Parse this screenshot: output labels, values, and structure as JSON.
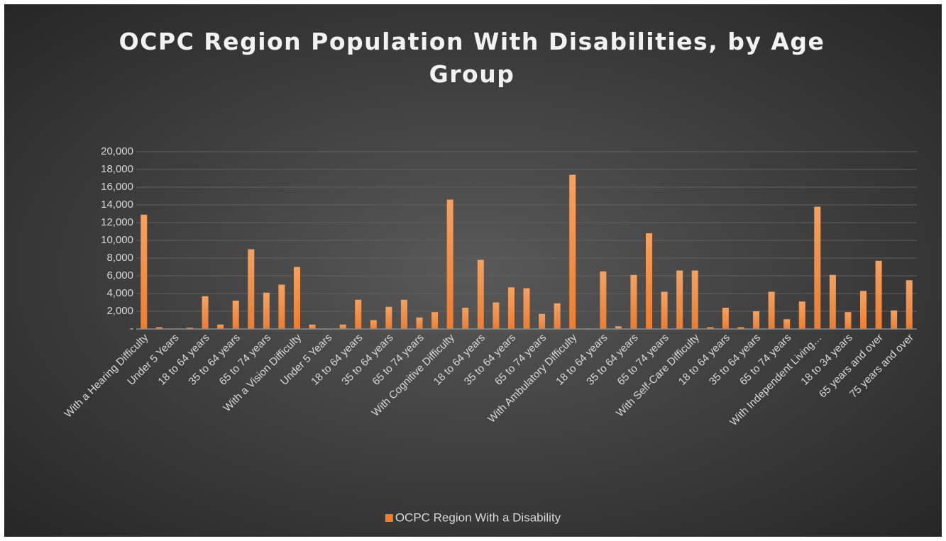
{
  "chart_data": {
    "type": "bar",
    "title": "OCPC Region Population With Disabilities, by Age Group",
    "categories": [
      "With a Hearing Difficulty",
      null,
      "Under 5 Years",
      null,
      "18 to 64 years",
      null,
      "35 to 64 years",
      null,
      "65 to 74 years",
      null,
      "With a Vision Difficulty",
      null,
      "Under 5 Years",
      null,
      "18 to 64 years",
      null,
      "35 to 64 years",
      null,
      "65 to 74 years",
      null,
      "With Cognitive Difficulty",
      null,
      "18 to 64 years",
      null,
      "35 to 64 years",
      null,
      "65 to 74 years",
      null,
      "With Ambulatory Difficulty",
      null,
      "18 to 64 years",
      null,
      "35 to 64 years",
      null,
      "65 to 74 years",
      null,
      "With Self-Care Difficulty",
      null,
      "18 to 64 years",
      null,
      "35 to 64 years",
      null,
      "65 to 74 years",
      null,
      "With Independent Living…",
      null,
      "18 to 34 years",
      null,
      "65 years and over",
      null,
      "75 years and over"
    ],
    "series": [
      {
        "name": "OCPC Region With a Disability",
        "color": "#ed7d31",
        "values": [
          12900,
          200,
          30,
          150,
          3700,
          500,
          3200,
          9000,
          4100,
          5000,
          7000,
          500,
          30,
          500,
          3300,
          1000,
          2500,
          3300,
          1300,
          1900,
          14600,
          2400,
          7800,
          3000,
          4700,
          4600,
          1700,
          2900,
          17400,
          50,
          6500,
          300,
          6100,
          10800,
          4200,
          6600,
          6600,
          200,
          2400,
          200,
          2000,
          4200,
          1100,
          3100,
          13800,
          6100,
          1900,
          4300,
          7700,
          2100,
          5500
        ]
      }
    ],
    "ylim": [
      0,
      20000
    ],
    "yticks": [
      {
        "value": 0,
        "label": "-"
      },
      {
        "value": 2000,
        "label": "2,000"
      },
      {
        "value": 4000,
        "label": "4,000"
      },
      {
        "value": 6000,
        "label": "6,000"
      },
      {
        "value": 8000,
        "label": "8,000"
      },
      {
        "value": 10000,
        "label": "10,000"
      },
      {
        "value": 12000,
        "label": "12,000"
      },
      {
        "value": 14000,
        "label": "14,000"
      },
      {
        "value": 16000,
        "label": "16,000"
      },
      {
        "value": 18000,
        "label": "18,000"
      },
      {
        "value": 20000,
        "label": "20,000"
      }
    ],
    "grid": true,
    "legend": "bottom"
  }
}
